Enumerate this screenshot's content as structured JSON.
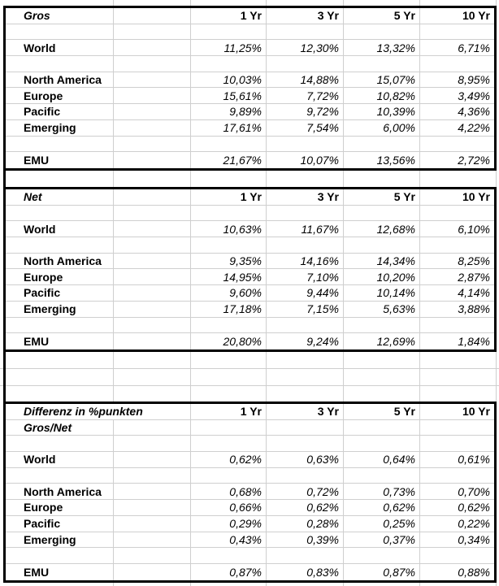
{
  "sections": [
    {
      "title": "Gros",
      "subtitle": null,
      "title_overflows": false,
      "col_headers": [
        "1 Yr",
        "3 Yr",
        "5 Yr",
        "10 Yr"
      ],
      "rows": [
        {
          "label": "",
          "values": [
            "",
            "",
            "",
            ""
          ]
        },
        {
          "label": "World",
          "values": [
            "11,25%",
            "12,30%",
            "13,32%",
            "6,71%"
          ]
        },
        {
          "label": "",
          "values": [
            "",
            "",
            "",
            ""
          ]
        },
        {
          "label": "North America",
          "values": [
            "10,03%",
            "14,88%",
            "15,07%",
            "8,95%"
          ]
        },
        {
          "label": "Europe",
          "values": [
            "15,61%",
            "7,72%",
            "10,82%",
            "3,49%"
          ]
        },
        {
          "label": "Pacific",
          "values": [
            "9,89%",
            "9,72%",
            "10,39%",
            "4,36%"
          ]
        },
        {
          "label": "Emerging",
          "values": [
            "17,61%",
            "7,54%",
            "6,00%",
            "4,22%"
          ]
        },
        {
          "label": "",
          "values": [
            "",
            "",
            "",
            ""
          ]
        },
        {
          "label": "EMU",
          "values": [
            "21,67%",
            "10,07%",
            "13,56%",
            "2,72%"
          ]
        }
      ]
    },
    {
      "title": "Net",
      "subtitle": null,
      "title_overflows": false,
      "col_headers": [
        "1 Yr",
        "3 Yr",
        "5 Yr",
        "10 Yr"
      ],
      "rows": [
        {
          "label": "",
          "values": [
            "",
            "",
            "",
            ""
          ]
        },
        {
          "label": "World",
          "values": [
            "10,63%",
            "11,67%",
            "12,68%",
            "6,10%"
          ]
        },
        {
          "label": "",
          "values": [
            "",
            "",
            "",
            ""
          ]
        },
        {
          "label": "North America",
          "values": [
            "9,35%",
            "14,16%",
            "14,34%",
            "8,25%"
          ]
        },
        {
          "label": "Europe",
          "values": [
            "14,95%",
            "7,10%",
            "10,20%",
            "2,87%"
          ]
        },
        {
          "label": "Pacific",
          "values": [
            "9,60%",
            "9,44%",
            "10,14%",
            "4,14%"
          ]
        },
        {
          "label": "Emerging",
          "values": [
            "17,18%",
            "7,15%",
            "5,63%",
            "3,88%"
          ]
        },
        {
          "label": "",
          "values": [
            "",
            "",
            "",
            ""
          ]
        },
        {
          "label": "EMU",
          "values": [
            "20,80%",
            "9,24%",
            "12,69%",
            "1,84%"
          ]
        }
      ]
    },
    {
      "title": "Differenz in %punkten",
      "subtitle": "Gros/Net",
      "title_overflows": true,
      "col_headers": [
        "1 Yr",
        "3 Yr",
        "5 Yr",
        "10 Yr"
      ],
      "rows": [
        {
          "label": "",
          "values": [
            "",
            "",
            "",
            ""
          ]
        },
        {
          "label": "World",
          "values": [
            "0,62%",
            "0,63%",
            "0,64%",
            "0,61%"
          ]
        },
        {
          "label": "",
          "values": [
            "",
            "",
            "",
            ""
          ]
        },
        {
          "label": "North America",
          "values": [
            "0,68%",
            "0,72%",
            "0,73%",
            "0,70%"
          ]
        },
        {
          "label": "Europe",
          "values": [
            "0,66%",
            "0,62%",
            "0,62%",
            "0,62%"
          ]
        },
        {
          "label": "Pacific",
          "values": [
            "0,29%",
            "0,28%",
            "0,25%",
            "0,22%"
          ]
        },
        {
          "label": "Emerging",
          "values": [
            "0,43%",
            "0,39%",
            "0,37%",
            "0,34%"
          ]
        },
        {
          "label": "",
          "values": [
            "",
            "",
            "",
            ""
          ]
        },
        {
          "label": "EMU",
          "values": [
            "0,87%",
            "0,83%",
            "0,87%",
            "0,88%"
          ]
        }
      ]
    }
  ]
}
